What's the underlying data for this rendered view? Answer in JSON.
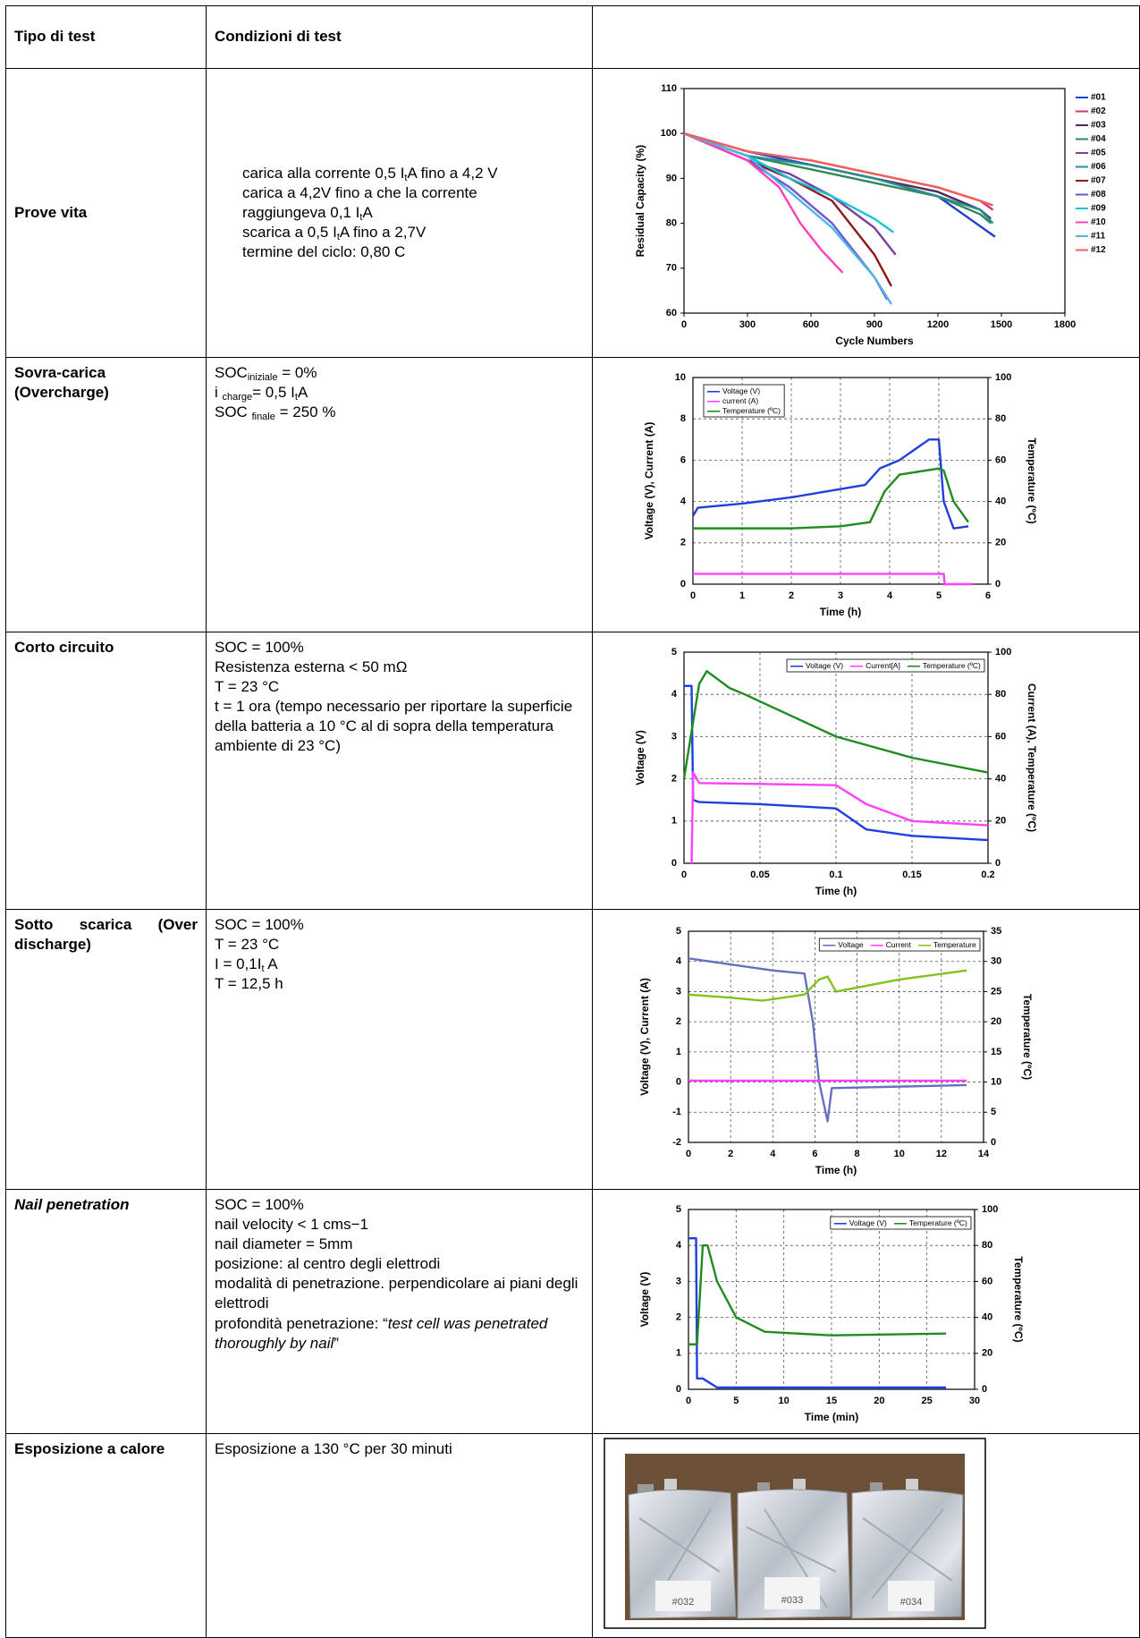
{
  "table": {
    "header": [
      "Tipo di test",
      "Condizioni di test"
    ],
    "rows": [
      {
        "test": "Prove vita",
        "conditions": [
          [
            "carica alla corrente 0,5 I",
            "t",
            "A fino a 4,2 V"
          ],
          "carica a 4,2V fino a che la corrente",
          [
            "raggiungeva 0,1 I",
            "t",
            "A"
          ],
          [
            "scarica a 0,5 I",
            "t",
            "A fino a 2,7V"
          ],
          "termine del ciclo: 0,80 C"
        ]
      },
      {
        "test": "Sovra-carica (Overcharge)",
        "conditions": [
          [
            "SOC",
            "iniziale",
            " = 0%"
          ],
          [
            "i ",
            "charge",
            "= 0,5 I",
            "t",
            "A"
          ],
          [
            "SOC ",
            "finale",
            " = 250 %"
          ]
        ]
      },
      {
        "test": "Corto circuito",
        "conditions": [
          "SOC = 100%",
          "Resistenza esterna < 50 mΩ",
          "T = 23 °C",
          "t = 1 ora (tempo necessario per riportare la superficie della batteria a 10 °C al di sopra della temperatura ambiente di 23 °C)"
        ]
      },
      {
        "test": "Sotto scarica (Over discharge)",
        "conditions": [
          "SOC = 100%",
          "T = 23 °C",
          [
            "I = 0,1I",
            "t",
            " A"
          ],
          "T = 12,5 h"
        ]
      },
      {
        "test": "Nail penetration",
        "conditions": [
          "SOC = 100%",
          "nail velocity < 1 cms−1",
          "nail diameter = 5mm",
          "posizione: al centro degli elettrodi",
          "modalità di penetrazione. perpendicolare ai piani degli elettrodi",
          [
            "profondità penetrazione: “",
            "test cell was penetrated thoroughly by nail",
            "”"
          ]
        ]
      },
      {
        "test": "Esposizione a calore",
        "conditions": [
          "Esposizione a 130 °C per 30 minuti"
        ],
        "photo_labels": [
          "#032",
          "#033",
          "#034"
        ]
      }
    ]
  },
  "chart_data": [
    {
      "type": "line",
      "y_label": "Residual Capacity (%)",
      "x_label": "Cycle Numbers",
      "xlim": [
        0,
        1800
      ],
      "xticks": [
        0,
        300,
        600,
        900,
        1200,
        1500,
        1800
      ],
      "ylim": [
        60,
        110
      ],
      "yticks": [
        60,
        70,
        80,
        90,
        100,
        110
      ],
      "grid": false,
      "legend": "right",
      "series": [
        {
          "name": "#01",
          "color": "#1f3fd1",
          "x": [
            0,
            300,
            600,
            900,
            1200,
            1350,
            1470
          ],
          "values": [
            100,
            96,
            93,
            90,
            86,
            81,
            77
          ]
        },
        {
          "name": "#02",
          "color": "#e0307a",
          "x": [
            0,
            300,
            600,
            900,
            1200,
            1400,
            1460
          ],
          "values": [
            100,
            96,
            94,
            91,
            88,
            85,
            83
          ]
        },
        {
          "name": "#03",
          "color": "#4b2c5e",
          "x": [
            0,
            300,
            600,
            900,
            1200,
            1400,
            1450
          ],
          "values": [
            100,
            95,
            93,
            90,
            87,
            83,
            81
          ]
        },
        {
          "name": "#04",
          "color": "#2e8b57",
          "x": [
            0,
            300,
            600,
            900,
            1200,
            1400,
            1450
          ],
          "values": [
            100,
            95,
            92,
            89,
            86,
            82,
            80
          ]
        },
        {
          "name": "#05",
          "color": "#7b3fa0",
          "x": [
            0,
            300,
            500,
            700,
            900,
            1000
          ],
          "values": [
            100,
            94,
            91,
            86,
            79,
            73
          ]
        },
        {
          "name": "#06",
          "color": "#2a8f8f",
          "x": [
            0,
            300,
            600,
            900,
            1200,
            1400,
            1460
          ],
          "values": [
            100,
            95,
            93,
            90,
            86,
            83,
            80
          ]
        },
        {
          "name": "#07",
          "color": "#8b1a1a",
          "x": [
            0,
            300,
            500,
            700,
            900,
            980
          ],
          "values": [
            100,
            94,
            90,
            85,
            73,
            66
          ]
        },
        {
          "name": "#08",
          "color": "#6a5acd",
          "x": [
            0,
            300,
            500,
            700,
            900,
            960
          ],
          "values": [
            100,
            94,
            88,
            80,
            68,
            63
          ]
        },
        {
          "name": "#09",
          "color": "#19c3d6",
          "x": [
            0,
            300,
            500,
            700,
            900,
            990
          ],
          "values": [
            100,
            95,
            90,
            86,
            81,
            78
          ]
        },
        {
          "name": "#10",
          "color": "#ff3fb4",
          "x": [
            0,
            300,
            450,
            550,
            650,
            750
          ],
          "values": [
            100,
            94,
            88,
            80,
            74,
            69
          ]
        },
        {
          "name": "#11",
          "color": "#4fb3e8",
          "x": [
            0,
            300,
            500,
            700,
            900,
            980
          ],
          "values": [
            100,
            95,
            87,
            79,
            68,
            62
          ]
        },
        {
          "name": "#12",
          "color": "#f0605a",
          "x": [
            0,
            300,
            600,
            900,
            1200,
            1400,
            1460
          ],
          "values": [
            100,
            96,
            94,
            91,
            88,
            85,
            84
          ]
        }
      ]
    },
    {
      "type": "line",
      "y_label": "Voltage (V), Current (A)",
      "y2_label": "Temperature (ºC)",
      "x_label": "Time (h)",
      "xlim": [
        0,
        6
      ],
      "xticks": [
        0,
        1,
        2,
        3,
        4,
        5,
        6
      ],
      "ylim": [
        0,
        10
      ],
      "yticks": [
        0,
        2,
        4,
        6,
        8,
        10
      ],
      "y2lim": [
        0,
        100
      ],
      "y2ticks": [
        0,
        20,
        40,
        60,
        80,
        100
      ],
      "grid": true,
      "legend": "upper left",
      "series": [
        {
          "name": "Voltage (V)",
          "color": "#1f3fe0",
          "x": [
            0,
            0.1,
            1,
            2,
            3,
            3.5,
            3.8,
            4.2,
            4.8,
            5.0,
            5.1,
            5.3,
            5.6
          ],
          "values": [
            3.3,
            3.7,
            3.9,
            4.2,
            4.6,
            4.8,
            5.6,
            6.0,
            7.0,
            7.0,
            4.0,
            2.7,
            2.8
          ]
        },
        {
          "name": "current (A)",
          "color": "#ff40ff",
          "x": [
            0,
            5.1,
            5.12,
            5.7
          ],
          "values": [
            0.5,
            0.5,
            0,
            0
          ]
        },
        {
          "name": "Temperature (ºC)",
          "color": "#1e8c1e",
          "axis": "y2",
          "x": [
            0,
            1,
            2,
            3,
            3.6,
            3.9,
            4.2,
            5,
            5.1,
            5.3,
            5.6
          ],
          "values": [
            27,
            27,
            27,
            28,
            30,
            45,
            53,
            56,
            55,
            40,
            30
          ]
        }
      ]
    },
    {
      "type": "line",
      "y_label": "Voltage (V)",
      "y2_label": "Current (A), Temperature (ºC)",
      "x_label": "Time (h)",
      "xlim": [
        0,
        0.2
      ],
      "xticks": [
        0,
        0.05,
        0.1,
        0.15,
        0.2
      ],
      "ylim": [
        0,
        5
      ],
      "yticks": [
        0,
        1,
        2,
        3,
        4,
        5
      ],
      "y2lim": [
        0,
        100
      ],
      "y2ticks": [
        0,
        20,
        40,
        60,
        80,
        100
      ],
      "grid": true,
      "legend": "upper right",
      "series": [
        {
          "name": "Voltage (V)",
          "color": "#1f3fe0",
          "x": [
            0,
            0.005,
            0.006,
            0.01,
            0.05,
            0.1,
            0.12,
            0.15,
            0.2
          ],
          "values": [
            4.2,
            4.2,
            1.5,
            1.45,
            1.4,
            1.3,
            0.8,
            0.65,
            0.55
          ]
        },
        {
          "name": "Current[A]",
          "color": "#ff40ff",
          "axis": "y2",
          "x": [
            0.005,
            0.006,
            0.01,
            0.1,
            0.12,
            0.15,
            0.2
          ],
          "values": [
            0,
            43,
            38,
            37,
            28,
            20,
            18
          ]
        },
        {
          "name": "Temperature (ºC)",
          "color": "#1e8c1e",
          "axis": "y2",
          "x": [
            0,
            0.01,
            0.015,
            0.03,
            0.04,
            0.1,
            0.15,
            0.2
          ],
          "values": [
            40,
            85,
            91,
            83,
            80,
            60,
            50,
            43
          ]
        }
      ]
    },
    {
      "type": "line",
      "y_label": "Voltage (V), Current (A)",
      "y2_label": "Temperature (ºC)",
      "x_label": "Time (h)",
      "xlim": [
        0,
        14
      ],
      "xticks": [
        0,
        2,
        4,
        6,
        8,
        10,
        12,
        14
      ],
      "ylim": [
        -2,
        5
      ],
      "yticks": [
        -2,
        -1,
        0,
        1,
        2,
        3,
        4,
        5
      ],
      "y2lim": [
        0,
        35
      ],
      "y2ticks": [
        0,
        5,
        10,
        15,
        20,
        25,
        30,
        35
      ],
      "grid": true,
      "legend": "upper right",
      "series": [
        {
          "name": "Voltage",
          "color": "#6670c0",
          "x": [
            0,
            2,
            4,
            5.5,
            5.9,
            6.2,
            6.6,
            6.8,
            13.2
          ],
          "values": [
            4.1,
            3.9,
            3.7,
            3.6,
            2,
            0,
            -1.3,
            -0.2,
            -0.1
          ]
        },
        {
          "name": "Current",
          "color": "#ff40ff",
          "x": [
            0,
            13.2
          ],
          "values": [
            0.05,
            0.05
          ]
        },
        {
          "name": "Temperature",
          "color": "#7fc31c",
          "axis": "y2",
          "x": [
            0,
            2,
            3.5,
            5.5,
            6.2,
            6.6,
            7,
            10,
            13.2
          ],
          "values": [
            24.5,
            24,
            23.5,
            24.5,
            27,
            27.5,
            25,
            27,
            28.5
          ]
        }
      ]
    },
    {
      "type": "line",
      "y_label": "Voltage (V)",
      "y2_label": "Temperature (ºC)",
      "x_label": "Time (min)",
      "xlim": [
        0,
        30
      ],
      "xticks": [
        0,
        5,
        10,
        15,
        20,
        25,
        30
      ],
      "ylim": [
        0,
        5
      ],
      "yticks": [
        0,
        1,
        2,
        3,
        4,
        5
      ],
      "y2lim": [
        0,
        100
      ],
      "y2ticks": [
        0,
        20,
        40,
        60,
        80,
        100
      ],
      "grid": true,
      "legend": "upper right",
      "series": [
        {
          "name": "Voltage (V)",
          "color": "#1f3fe0",
          "x": [
            0,
            0.8,
            0.9,
            1.5,
            3,
            27
          ],
          "values": [
            4.2,
            4.2,
            0.3,
            0.3,
            0.05,
            0.05
          ]
        },
        {
          "name": "Temperature (ºC)",
          "color": "#1e8c1e",
          "axis": "y2",
          "x": [
            0,
            0.9,
            1.5,
            2,
            3,
            5,
            8,
            15,
            27
          ],
          "values": [
            25,
            25,
            80,
            80,
            60,
            40,
            32,
            30,
            31
          ]
        }
      ]
    }
  ]
}
